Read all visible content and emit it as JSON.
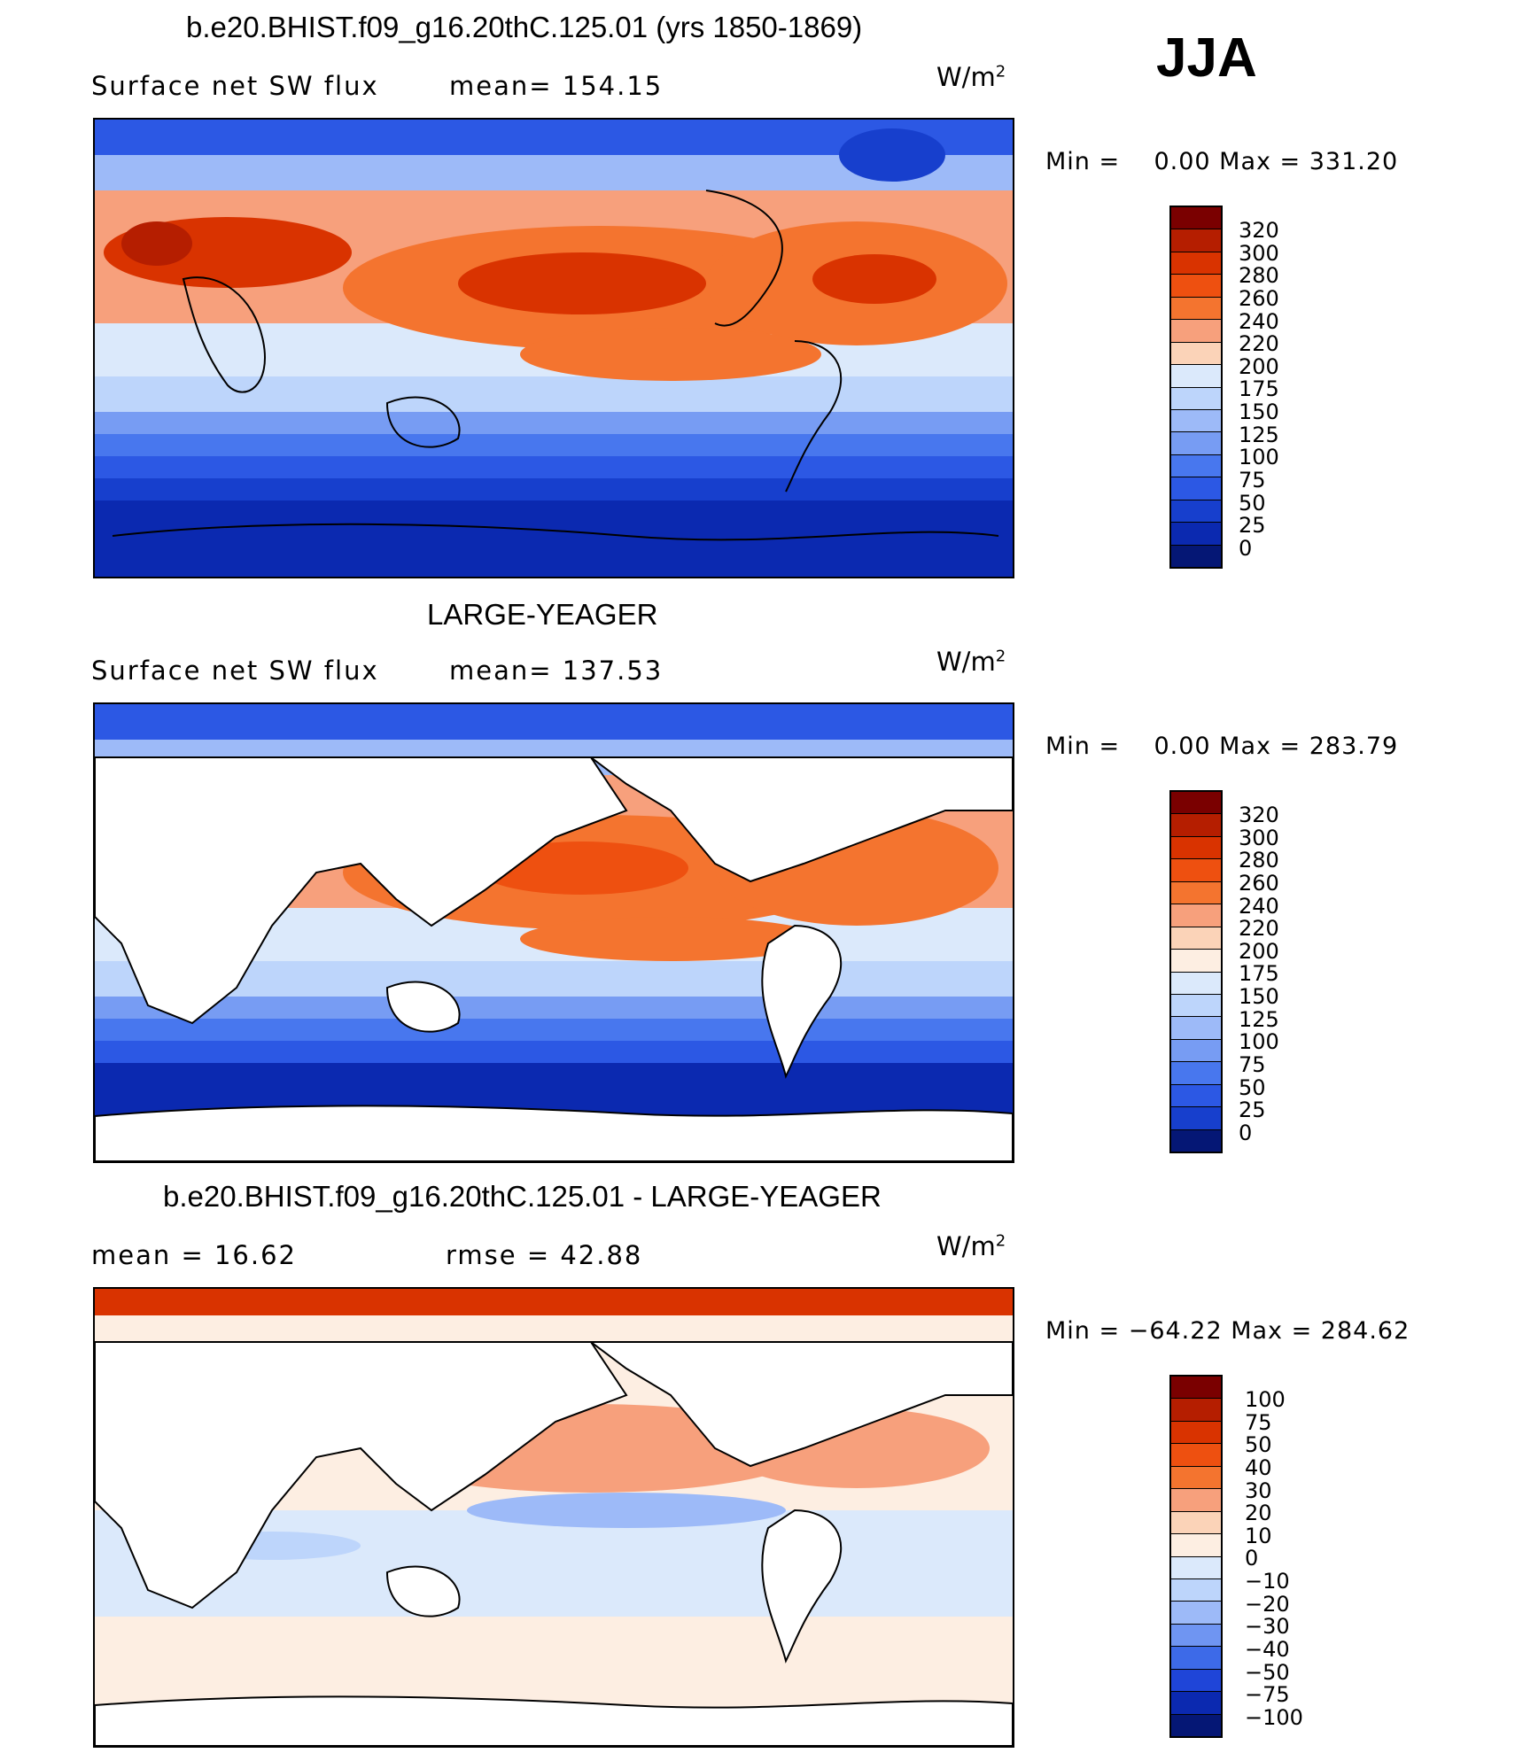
{
  "season": "JJA",
  "panels": [
    {
      "title": "b.e20.BHIST.f09_g16.20thC.125.01 (yrs 1850-1869)",
      "variable": "Surface net SW flux",
      "stat_text": "mean= 154.15",
      "units_base": "W/m",
      "units_exp": "2",
      "minmax": "Min =    0.00 Max = 331.20",
      "colorbar": {
        "labels": [
          "320",
          "300",
          "280",
          "260",
          "240",
          "220",
          "200",
          "175",
          "150",
          "125",
          "100",
          "75",
          "50",
          "25",
          "0"
        ],
        "colors": [
          "#7a0000",
          "#b51e00",
          "#d93300",
          "#ee5010",
          "#f4742f",
          "#f7a07c",
          "#fbd3b8",
          "#dbe9fb",
          "#bdd5fb",
          "#9dbaf8",
          "#779cf3",
          "#4877ee",
          "#2c58e4",
          "#173fcd",
          "#0b29b0",
          "#051775"
        ]
      }
    },
    {
      "title": "LARGE-YEAGER",
      "variable": "Surface net SW flux",
      "stat_text": "mean= 137.53",
      "units_base": "W/m",
      "units_exp": "2",
      "minmax": "Min =    0.00 Max = 283.79",
      "colorbar": {
        "labels": [
          "320",
          "300",
          "280",
          "260",
          "240",
          "220",
          "200",
          "175",
          "150",
          "125",
          "100",
          "75",
          "50",
          "25",
          "0"
        ],
        "colors": [
          "#7a0000",
          "#b51e00",
          "#d93300",
          "#ee5010",
          "#f4742f",
          "#f7a07c",
          "#fbd3b8",
          "#fdeee2",
          "#dbe9fb",
          "#bdd5fb",
          "#9dbaf8",
          "#779cf3",
          "#4877ee",
          "#2c58e4",
          "#173fcd",
          "#051775"
        ]
      }
    },
    {
      "title": "b.e20.BHIST.f09_g16.20thC.125.01 - LARGE-YEAGER",
      "variable": "mean =    16.62",
      "stat_text": "rmse =    42.88",
      "units_base": "W/m",
      "units_exp": "2",
      "minmax": "Min = −64.22 Max = 284.62",
      "colorbar": {
        "labels": [
          "100",
          "75",
          "50",
          "40",
          "30",
          "20",
          "10",
          "0",
          "−10",
          "−20",
          "−30",
          "−40",
          "−50",
          "−75",
          "−100"
        ],
        "colors": [
          "#7a0000",
          "#b51e00",
          "#d93300",
          "#ee5010",
          "#f4742f",
          "#f7a07c",
          "#fbd3b8",
          "#fdeee2",
          "#dbe9fb",
          "#bdd5fb",
          "#9dbaf8",
          "#6f95f2",
          "#3d6ae8",
          "#1f45d8",
          "#0b29b0",
          "#051775"
        ]
      }
    }
  ]
}
